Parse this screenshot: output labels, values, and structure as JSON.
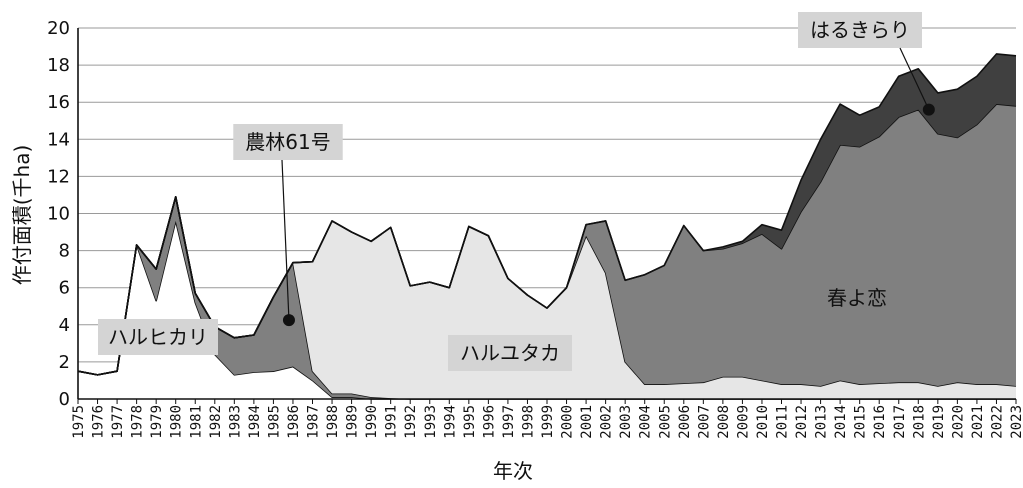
{
  "chart_data": {
    "type": "area",
    "stacked": true,
    "xlabel": "年次",
    "ylabel": "作付面積(千ha)",
    "ylim": [
      0,
      20
    ],
    "yticks": [
      0,
      2,
      4,
      6,
      8,
      10,
      12,
      14,
      16,
      18,
      20
    ],
    "grid": true,
    "x": [
      "1975",
      "1976",
      "1977",
      "1978",
      "1979",
      "1980",
      "1981",
      "1982",
      "1983",
      "1984",
      "1985",
      "1986",
      "1987",
      "1988",
      "1989",
      "1990",
      "1991",
      "1992",
      "1993",
      "1994",
      "1995",
      "1996",
      "1997",
      "1998",
      "1999",
      "2000",
      "2001",
      "2002",
      "2003",
      "2004",
      "2005",
      "2006",
      "2007",
      "2008",
      "2009",
      "2010",
      "2011",
      "2012",
      "2013",
      "2014",
      "2015",
      "2016",
      "2017",
      "2018",
      "2019",
      "2020",
      "2021",
      "2022",
      "2023"
    ],
    "series": [
      {
        "name": "ハルヒカリ",
        "color": "#ffffff",
        "values": [
          1.5,
          1.3,
          1.5,
          8.3,
          5.3,
          9.6,
          5.2,
          2.4,
          1.3,
          1.45,
          1.5,
          1.75,
          1.0,
          0.1,
          0.1,
          0,
          0,
          0,
          0,
          0,
          0,
          0,
          0,
          0,
          0,
          0,
          0,
          0,
          0,
          0,
          0,
          0,
          0,
          0,
          0,
          0,
          0,
          0,
          0,
          0,
          0,
          0,
          0,
          0,
          0,
          0,
          0,
          0,
          0
        ]
      },
      {
        "name": "農林61号",
        "color": "#808080",
        "values": [
          0,
          0,
          0,
          0,
          1.7,
          1.3,
          0.5,
          1.5,
          2.0,
          2.0,
          4.0,
          5.6,
          0.5,
          0.2,
          0.2,
          0.1,
          0.05,
          0,
          0,
          0,
          0,
          0,
          0,
          0,
          0,
          0,
          0,
          0,
          0,
          0,
          0,
          0,
          0,
          0,
          0,
          0,
          0,
          0,
          0,
          0,
          0,
          0,
          0,
          0,
          0,
          0,
          0,
          0,
          0
        ]
      },
      {
        "name": "ハルユタカ",
        "color": "#e6e6e6",
        "values": [
          0,
          0,
          0,
          0,
          0,
          0,
          0,
          0,
          0,
          0,
          0,
          0,
          5.9,
          9.3,
          8.7,
          8.4,
          9.2,
          6.1,
          6.3,
          6.0,
          9.3,
          8.8,
          6.5,
          5.6,
          4.9,
          6.0,
          8.8,
          6.8,
          2.0,
          0.8,
          0.8,
          0.85,
          0.9,
          1.2,
          1.2,
          1.0,
          0.8,
          0.8,
          0.7,
          1.0,
          0.8,
          0.85,
          0.9,
          0.9,
          0.7,
          0.9,
          0.8,
          0.8,
          0.7
        ]
      },
      {
        "name": "春よ恋",
        "color": "#808080",
        "values": [
          0,
          0,
          0,
          0,
          0,
          0,
          0,
          0,
          0,
          0,
          0,
          0,
          0,
          0,
          0,
          0,
          0,
          0,
          0,
          0,
          0,
          0,
          0,
          0,
          0,
          0,
          0.6,
          2.8,
          4.4,
          5.9,
          6.4,
          8.5,
          7.1,
          6.9,
          7.2,
          7.9,
          7.3,
          9.3,
          11.0,
          12.7,
          12.8,
          13.3,
          14.3,
          14.7,
          13.6,
          13.2,
          14.0,
          15.1,
          15.1
        ]
      },
      {
        "name": "はるきらり",
        "color": "#404040",
        "values": [
          0,
          0,
          0,
          0,
          0,
          0,
          0,
          0,
          0,
          0,
          0,
          0,
          0,
          0,
          0,
          0,
          0,
          0,
          0,
          0,
          0,
          0,
          0,
          0,
          0,
          0,
          0,
          0,
          0,
          0,
          0,
          0,
          0,
          0.1,
          0.1,
          0.5,
          1.0,
          1.7,
          2.3,
          2.2,
          1.7,
          1.6,
          2.2,
          2.2,
          2.2,
          2.6,
          2.6,
          2.7,
          2.7
        ]
      }
    ],
    "annotations": [
      {
        "text": "ハルヒカリ",
        "series": "ハルヒカリ"
      },
      {
        "text": "農林61号",
        "series": "農林61号"
      },
      {
        "text": "ハルユタカ",
        "series": "ハルユタカ"
      },
      {
        "text": "春よ恋",
        "series": "春よ恋"
      },
      {
        "text": "はるきらり",
        "series": "はるきらり"
      }
    ]
  }
}
